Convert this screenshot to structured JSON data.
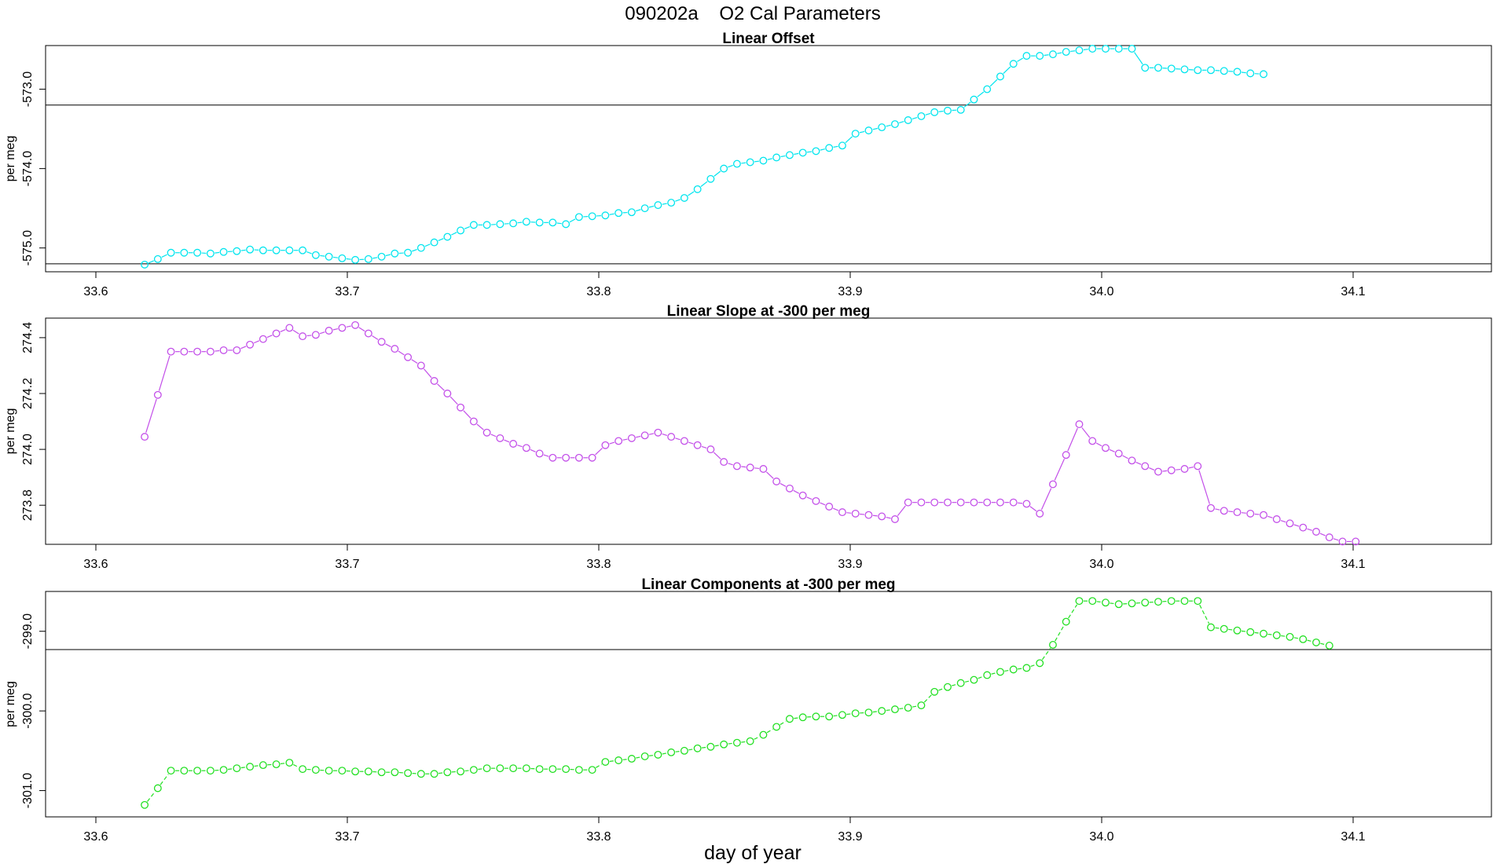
{
  "figure": {
    "title": "090202a    O2 Cal Parameters",
    "xlabel": "day of year"
  },
  "chart_data": [
    {
      "type": "line",
      "title": "Linear Offset",
      "ylabel": "per meg",
      "xlabel": "",
      "color": "#00e5ee",
      "dashed": false,
      "xlim": [
        33.58,
        34.155
      ],
      "ylim": [
        -575.3,
        -572.45
      ],
      "xticks": [
        33.6,
        33.7,
        33.8,
        33.9,
        34.0,
        34.1
      ],
      "xtick_labels": [
        "33.6",
        "33.7",
        "33.8",
        "33.9",
        "34.0",
        "34.1"
      ],
      "yticks": [
        -575.0,
        -574.0,
        -573.0
      ],
      "ytick_labels": [
        "-575.0",
        "-574.0",
        "-573.0"
      ],
      "hlines": [
        -573.2,
        -575.2
      ],
      "x_start": 33.6194,
      "x_step": 0.005235,
      "values": [
        -575.21,
        -575.14,
        -575.06,
        -575.06,
        -575.06,
        -575.07,
        -575.05,
        -575.04,
        -575.02,
        -575.03,
        -575.03,
        -575.03,
        -575.03,
        -575.09,
        -575.11,
        -575.13,
        -575.15,
        -575.14,
        -575.11,
        -575.07,
        -575.06,
        -575.0,
        -574.93,
        -574.86,
        -574.78,
        -574.71,
        -574.71,
        -574.7,
        -574.69,
        -574.67,
        -574.68,
        -574.68,
        -574.7,
        -574.61,
        -574.6,
        -574.59,
        -574.56,
        -574.55,
        -574.5,
        -574.46,
        -574.43,
        -574.37,
        -574.26,
        -574.13,
        -574.0,
        -573.94,
        -573.92,
        -573.9,
        -573.86,
        -573.83,
        -573.8,
        -573.78,
        -573.74,
        -573.71,
        -573.56,
        -573.52,
        -573.48,
        -573.44,
        -573.39,
        -573.34,
        -573.29,
        -573.27,
        -573.26,
        -573.13,
        -573.0,
        -572.84,
        -572.68,
        -572.58,
        -572.58,
        -572.56,
        -572.53,
        -572.51,
        -572.49,
        -572.49,
        -572.49,
        -572.49,
        -572.73,
        -572.73,
        -572.74,
        -572.75,
        -572.76,
        -572.76,
        -572.77,
        -572.78,
        -572.8,
        -572.81
      ]
    },
    {
      "type": "line",
      "title": "Linear Slope at -300 per meg",
      "ylabel": "per meg",
      "xlabel": "",
      "color": "#c34fe9",
      "dashed": false,
      "xlim": [
        33.58,
        34.155
      ],
      "ylim": [
        273.66,
        274.47
      ],
      "xticks": [
        33.6,
        33.7,
        33.8,
        33.9,
        34.0,
        34.1
      ],
      "xtick_labels": [
        "33.6",
        "33.7",
        "33.8",
        "33.9",
        "34.0",
        "34.1"
      ],
      "yticks": [
        273.8,
        274.0,
        274.2,
        274.4
      ],
      "ytick_labels": [
        "273.8",
        "274.0",
        "274.2",
        "274.4"
      ],
      "hlines": [],
      "x_start": 33.6194,
      "x_step": 0.005235,
      "values": [
        274.045,
        274.195,
        274.35,
        274.35,
        274.35,
        274.35,
        274.355,
        274.355,
        274.375,
        274.395,
        274.415,
        274.435,
        274.405,
        274.41,
        274.425,
        274.435,
        274.445,
        274.415,
        274.385,
        274.36,
        274.33,
        274.3,
        274.245,
        274.2,
        274.15,
        274.1,
        274.06,
        274.04,
        274.02,
        274.005,
        273.985,
        273.97,
        273.97,
        273.97,
        273.97,
        274.015,
        274.03,
        274.04,
        274.05,
        274.06,
        274.045,
        274.03,
        274.015,
        274.0,
        273.955,
        273.94,
        273.935,
        273.93,
        273.885,
        273.86,
        273.835,
        273.815,
        273.795,
        273.775,
        273.77,
        273.765,
        273.76,
        273.75,
        273.81,
        273.81,
        273.81,
        273.81,
        273.81,
        273.81,
        273.81,
        273.81,
        273.81,
        273.805,
        273.77,
        273.875,
        273.98,
        274.09,
        274.03,
        274.005,
        273.985,
        273.96,
        273.94,
        273.92,
        273.925,
        273.93,
        273.94,
        273.79,
        273.78,
        273.775,
        273.77,
        273.765,
        273.75,
        273.735,
        273.72,
        273.705,
        273.685,
        273.67,
        273.67
      ]
    },
    {
      "type": "line",
      "title": "Linear Components at -300 per meg",
      "ylabel": "per meg",
      "xlabel": "day of year",
      "color": "#22e022",
      "dashed": true,
      "xlim": [
        33.58,
        34.155
      ],
      "ylim": [
        -301.33,
        -298.5
      ],
      "xticks": [
        33.6,
        33.7,
        33.8,
        33.9,
        34.0,
        34.1
      ],
      "xtick_labels": [
        "33.6",
        "33.7",
        "33.8",
        "33.9",
        "34.0",
        "34.1"
      ],
      "yticks": [
        -301.0,
        -300.0,
        -299.0
      ],
      "ytick_labels": [
        "-301.0",
        "-300.0",
        "-299.0"
      ],
      "hlines": [
        -299.23
      ],
      "x_start": 33.6194,
      "x_step": 0.005235,
      "values": [
        -301.18,
        -300.97,
        -300.75,
        -300.75,
        -300.75,
        -300.75,
        -300.74,
        -300.72,
        -300.7,
        -300.68,
        -300.67,
        -300.65,
        -300.73,
        -300.74,
        -300.75,
        -300.75,
        -300.76,
        -300.76,
        -300.77,
        -300.77,
        -300.78,
        -300.79,
        -300.79,
        -300.77,
        -300.76,
        -300.74,
        -300.72,
        -300.72,
        -300.72,
        -300.72,
        -300.73,
        -300.73,
        -300.73,
        -300.74,
        -300.74,
        -300.64,
        -300.62,
        -300.6,
        -300.57,
        -300.55,
        -300.52,
        -300.5,
        -300.47,
        -300.45,
        -300.42,
        -300.4,
        -300.38,
        -300.3,
        -300.2,
        -300.1,
        -300.08,
        -300.07,
        -300.07,
        -300.05,
        -300.03,
        -300.02,
        -300.0,
        -299.98,
        -299.96,
        -299.93,
        -299.76,
        -299.7,
        -299.65,
        -299.61,
        -299.55,
        -299.51,
        -299.48,
        -299.46,
        -299.4,
        -299.17,
        -298.88,
        -298.62,
        -298.62,
        -298.64,
        -298.66,
        -298.65,
        -298.64,
        -298.63,
        -298.62,
        -298.62,
        -298.62,
        -298.95,
        -298.97,
        -298.99,
        -299.01,
        -299.03,
        -299.05,
        -299.07,
        -299.1,
        -299.14,
        -299.18
      ]
    }
  ]
}
